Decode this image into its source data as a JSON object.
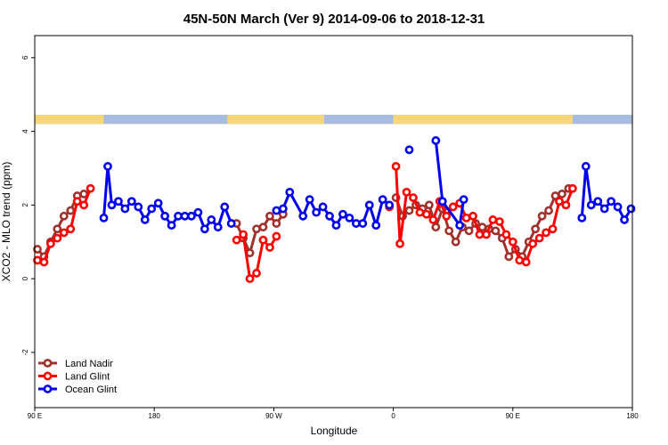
{
  "chart_data": {
    "type": "line",
    "title": "45N-50N March (Ver 9)   2014-09-06 to 2018-12-31",
    "xlabel": "Longitude",
    "ylabel": "XCO2 - MLO trend (ppm)",
    "xlim": [
      0,
      450
    ],
    "ylim": [
      -3.5,
      6.6
    ],
    "x_ticks": [
      {
        "value": 0,
        "label": "90 E"
      },
      {
        "value": 90,
        "label": "180"
      },
      {
        "value": 180,
        "label": "90 W"
      },
      {
        "value": 270,
        "label": "0"
      },
      {
        "value": 360,
        "label": "90 E"
      },
      {
        "value": 450,
        "label": "180"
      }
    ],
    "y_ticks": [
      {
        "value": -2,
        "label": "-2"
      },
      {
        "value": 0,
        "label": "0"
      },
      {
        "value": 2,
        "label": "2"
      },
      {
        "value": 4,
        "label": "4"
      },
      {
        "value": 6,
        "label": "6"
      }
    ],
    "legend_position": "bottom-left",
    "land_ocean_strip": {
      "y_range": [
        4.2,
        4.45
      ],
      "land_color": "#f5d67a",
      "ocean_color": "#a7bde0",
      "land_segments": [
        [
          0,
          52
        ],
        [
          145,
          218
        ],
        [
          270,
          405
        ]
      ]
    },
    "series": [
      {
        "name": "Land Nadir",
        "color": "#a0322e",
        "x": [
          2,
          7,
          12,
          17,
          22,
          27,
          32,
          37,
          152,
          157,
          162,
          167,
          172,
          177,
          182,
          187,
          272,
          277,
          282,
          287,
          292,
          297,
          302,
          307,
          312,
          317,
          322,
          327,
          332,
          337,
          342,
          347,
          352,
          357,
          362,
          367,
          372,
          377,
          382,
          387,
          392,
          397,
          402
        ],
        "y": [
          0.8,
          0.6,
          1.0,
          1.35,
          1.7,
          1.85,
          2.25,
          2.3,
          1.5,
          1.1,
          0.7,
          1.35,
          1.4,
          1.7,
          1.5,
          1.75,
          2.2,
          1.7,
          1.85,
          2.0,
          1.9,
          2.0,
          1.4,
          1.9,
          1.3,
          1.0,
          1.4,
          1.3,
          1.5,
          1.4,
          1.35,
          1.3,
          1.1,
          0.6,
          0.8,
          0.6,
          1.0,
          1.35,
          1.7,
          1.85,
          2.25,
          2.3,
          2.45
        ]
      },
      {
        "name": "Land Glint",
        "color": "#ff0000",
        "x": [
          2,
          7,
          12,
          17,
          22,
          27,
          32,
          37,
          42,
          152,
          157,
          162,
          167,
          172,
          177,
          182,
          267,
          272,
          275,
          280,
          285,
          290,
          295,
          300,
          305,
          310,
          315,
          320,
          325,
          330,
          335,
          340,
          345,
          350,
          355,
          360,
          365,
          370,
          375,
          380,
          385,
          390,
          395,
          400,
          405
        ],
        "y": [
          0.5,
          0.45,
          0.95,
          1.1,
          1.25,
          1.35,
          2.1,
          2.0,
          2.45,
          1.05,
          1.2,
          0.0,
          0.15,
          1.05,
          0.85,
          1.15,
          1.95,
          3.05,
          0.95,
          2.35,
          2.2,
          1.8,
          1.75,
          1.6,
          2.1,
          1.7,
          1.95,
          2.05,
          1.65,
          1.7,
          1.2,
          1.2,
          1.6,
          1.55,
          1.2,
          1.0,
          0.5,
          0.45,
          0.95,
          1.1,
          1.25,
          1.35,
          2.1,
          2.0,
          2.45
        ]
      },
      {
        "name": "Ocean Glint",
        "color": "#0000ee",
        "x": [
          52,
          55,
          58,
          63,
          68,
          73,
          78,
          83,
          88,
          93,
          98,
          103,
          108,
          113,
          118,
          123,
          128,
          133,
          138,
          143,
          148,
          182,
          187,
          192,
          202,
          207,
          212,
          217,
          222,
          227,
          232,
          237,
          242,
          247,
          252,
          257,
          262,
          267,
          282,
          302,
          307,
          320,
          323,
          412,
          415,
          419,
          424,
          429,
          434,
          439,
          444,
          449
        ],
        "y": [
          1.65,
          3.05,
          2.0,
          2.1,
          1.9,
          2.1,
          1.95,
          1.6,
          1.9,
          2.05,
          1.7,
          1.45,
          1.7,
          1.7,
          1.7,
          1.8,
          1.35,
          1.6,
          1.4,
          1.95,
          1.5,
          1.85,
          1.9,
          2.35,
          1.7,
          2.15,
          1.8,
          1.95,
          1.7,
          1.45,
          1.75,
          1.65,
          1.5,
          1.5,
          2.0,
          1.45,
          2.15,
          2.0,
          3.5,
          3.75,
          2.1,
          1.45,
          2.15,
          1.65,
          3.05,
          2.0,
          2.1,
          1.9,
          2.1,
          1.95,
          1.6,
          1.9
        ]
      }
    ],
    "series_breaks": [
      {
        "series": 0,
        "after_index": 7
      },
      {
        "series": 0,
        "after_index": 15
      },
      {
        "series": 1,
        "after_index": 8
      },
      {
        "series": 1,
        "after_index": 15
      },
      {
        "series": 1,
        "after_index": 16
      },
      {
        "series": 2,
        "after_index": 20
      },
      {
        "series": 2,
        "after_index": 37
      },
      {
        "series": 2,
        "after_index": 38
      },
      {
        "series": 2,
        "after_index": 42
      }
    ]
  }
}
